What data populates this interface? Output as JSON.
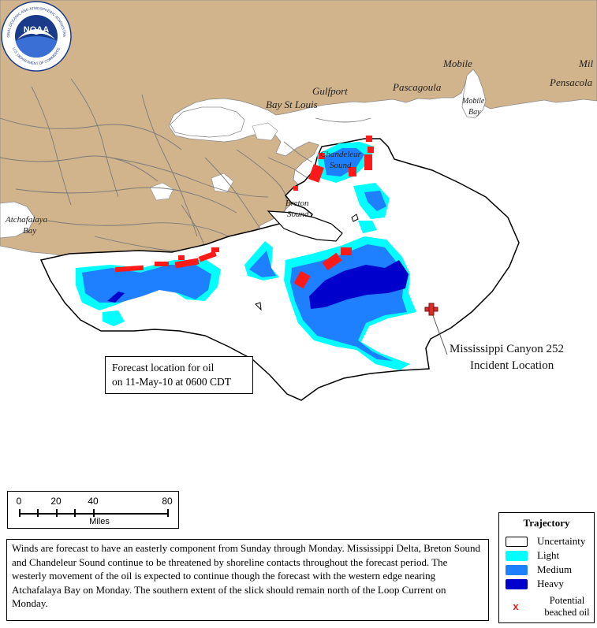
{
  "agency": "NOAA",
  "agency_logo": {
    "top_text": "NATIONAL OCEANIC AND ATMOSPHERIC ADMINISTRATION",
    "bottom_text": "U.S. DEPARTMENT OF COMMERCE",
    "colors": {
      "ring": "#ffffff",
      "inner": "#1a3a8a",
      "bird": "#ffffff",
      "lower": "#3a6fd6"
    }
  },
  "places": {
    "mobile": "Mobile",
    "mil": "Mil",
    "pensacola": "Pensacola",
    "gulfport": "Gulfport",
    "pascagoula": "Pascagoula",
    "bay_st_louis": "Bay St Louis",
    "mobile_bay_line1": "Mobile",
    "mobile_bay_line2": "Bay",
    "chandeleur_line1": "Chandeleur",
    "chandeleur_line2": "Sound",
    "breton_line1": "Breton",
    "breton_line2": "Sound",
    "atchafalaya_line1": "Atchafalaya",
    "atchafalaya_line2": "Bay"
  },
  "incident": {
    "line1": "Mississippi Canyon 252",
    "line2": "Incident Location",
    "marker_color": "#d7302a"
  },
  "forecast_box": {
    "line1": "Forecast location for oil",
    "line2": "on 11-May-10 at 0600 CDT"
  },
  "scale_bar": {
    "ticks": [
      "0",
      "20",
      "40",
      "80"
    ],
    "unit": "Miles"
  },
  "description": "Winds are forecast to have an easterly component from Sunday through Monday. Mississippi Delta, Breton Sound and Chandeleur Sound continue to be threatened by shoreline contacts throughout the forecast period. The westerly movement of the oil is expected to continue though the forecast with the western edge nearing Atchafalaya Bay on Monday. The southern extent of the slick should remain north of the Loop Current on Monday.",
  "legend": {
    "title": "Trajectory",
    "items": [
      {
        "label": "Uncertainty",
        "color": "#ffffff"
      },
      {
        "label": "Light",
        "color": "#00ffff"
      },
      {
        "label": "Medium",
        "color": "#1e7fff"
      },
      {
        "label": "Heavy",
        "color": "#0000cc"
      }
    ],
    "beached_symbol": "x",
    "beached_label": "Potential beached oil"
  },
  "colors": {
    "land": "#d2b48c",
    "water": "#ffffff",
    "uncertainty_outline": "#000000",
    "light_oil": "#00ffff",
    "medium_oil": "#1e7fff",
    "heavy_oil": "#0000cc",
    "beached_oil": "#ff1a1a"
  }
}
